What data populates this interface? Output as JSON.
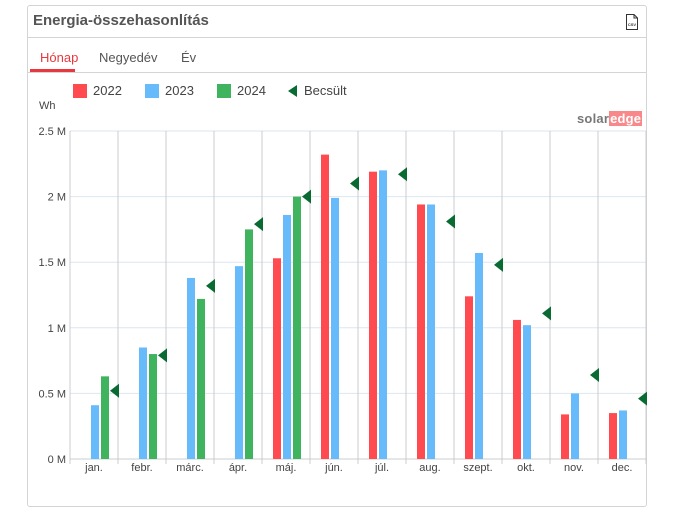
{
  "header": {
    "title": "Energia-összehasonlítás",
    "csv_icon": "csv-file-icon",
    "csv_label": "CSV"
  },
  "tabs": [
    {
      "label": "Hónap",
      "active": true
    },
    {
      "label": "Negyedév",
      "active": false
    },
    {
      "label": "Év",
      "active": false
    }
  ],
  "logo": {
    "part1": "solar",
    "part2": "edge"
  },
  "chart_data": {
    "type": "bar",
    "ylabel": "Wh",
    "ylim": [
      0,
      2.5
    ],
    "yticks": [
      "0 M",
      "0.5 M",
      "1 M",
      "1.5 M",
      "2 M",
      "2.5 M"
    ],
    "categories": [
      "jan.",
      "febr.",
      "márc.",
      "ápr.",
      "máj.",
      "jún.",
      "júl.",
      "aug.",
      "szept.",
      "okt.",
      "nov.",
      "dec."
    ],
    "series": [
      {
        "name": "2022",
        "color": "#ff4a4f",
        "values": [
          null,
          null,
          null,
          null,
          1.53,
          2.32,
          2.19,
          1.94,
          1.24,
          1.06,
          0.34,
          0.35
        ]
      },
      {
        "name": "2023",
        "color": "#67bbfb",
        "values": [
          0.41,
          0.85,
          1.38,
          1.47,
          1.86,
          1.99,
          2.2,
          1.94,
          1.57,
          1.02,
          0.5,
          0.37
        ]
      },
      {
        "name": "2024",
        "color": "#3fb35e",
        "values": [
          0.63,
          0.8,
          1.22,
          1.75,
          2.0,
          null,
          null,
          null,
          null,
          null,
          null,
          null
        ]
      },
      {
        "name": "Becsült",
        "color": "#0a6b32",
        "marker": "triangle-left",
        "values": [
          0.52,
          0.79,
          1.32,
          1.79,
          2.0,
          2.1,
          2.17,
          1.81,
          1.48,
          1.11,
          0.64,
          0.46
        ]
      }
    ]
  }
}
